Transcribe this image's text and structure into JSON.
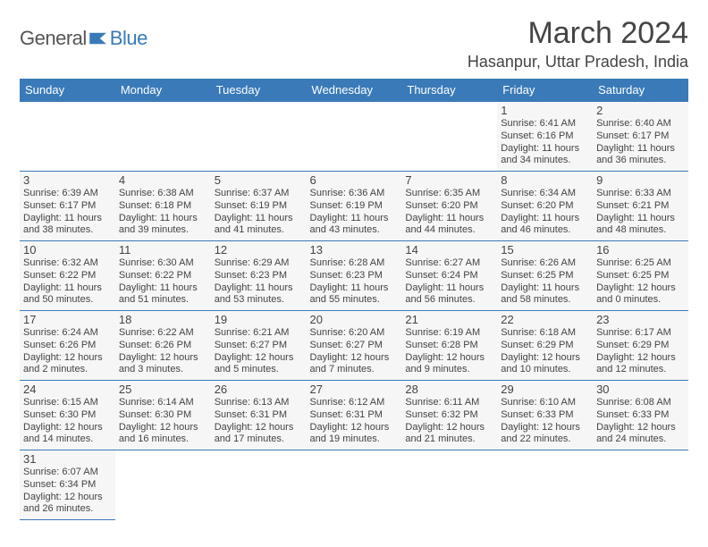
{
  "logo": {
    "general": "General",
    "blue": "Blue"
  },
  "title": "March 2024",
  "location": "Hasanpur, Uttar Pradesh, India",
  "colors": {
    "header_bg": "#3a7ab8",
    "header_fg": "#ffffff",
    "cell_bg": "#f6f6f6",
    "border": "#3a7ab8",
    "text": "#444444"
  },
  "weekdays": [
    "Sunday",
    "Monday",
    "Tuesday",
    "Wednesday",
    "Thursday",
    "Friday",
    "Saturday"
  ],
  "weeks": [
    [
      null,
      null,
      null,
      null,
      null,
      {
        "n": "1",
        "rise": "Sunrise: 6:41 AM",
        "set": "Sunset: 6:16 PM",
        "dl1": "Daylight: 11 hours",
        "dl2": "and 34 minutes."
      },
      {
        "n": "2",
        "rise": "Sunrise: 6:40 AM",
        "set": "Sunset: 6:17 PM",
        "dl1": "Daylight: 11 hours",
        "dl2": "and 36 minutes."
      }
    ],
    [
      {
        "n": "3",
        "rise": "Sunrise: 6:39 AM",
        "set": "Sunset: 6:17 PM",
        "dl1": "Daylight: 11 hours",
        "dl2": "and 38 minutes."
      },
      {
        "n": "4",
        "rise": "Sunrise: 6:38 AM",
        "set": "Sunset: 6:18 PM",
        "dl1": "Daylight: 11 hours",
        "dl2": "and 39 minutes."
      },
      {
        "n": "5",
        "rise": "Sunrise: 6:37 AM",
        "set": "Sunset: 6:19 PM",
        "dl1": "Daylight: 11 hours",
        "dl2": "and 41 minutes."
      },
      {
        "n": "6",
        "rise": "Sunrise: 6:36 AM",
        "set": "Sunset: 6:19 PM",
        "dl1": "Daylight: 11 hours",
        "dl2": "and 43 minutes."
      },
      {
        "n": "7",
        "rise": "Sunrise: 6:35 AM",
        "set": "Sunset: 6:20 PM",
        "dl1": "Daylight: 11 hours",
        "dl2": "and 44 minutes."
      },
      {
        "n": "8",
        "rise": "Sunrise: 6:34 AM",
        "set": "Sunset: 6:20 PM",
        "dl1": "Daylight: 11 hours",
        "dl2": "and 46 minutes."
      },
      {
        "n": "9",
        "rise": "Sunrise: 6:33 AM",
        "set": "Sunset: 6:21 PM",
        "dl1": "Daylight: 11 hours",
        "dl2": "and 48 minutes."
      }
    ],
    [
      {
        "n": "10",
        "rise": "Sunrise: 6:32 AM",
        "set": "Sunset: 6:22 PM",
        "dl1": "Daylight: 11 hours",
        "dl2": "and 50 minutes."
      },
      {
        "n": "11",
        "rise": "Sunrise: 6:30 AM",
        "set": "Sunset: 6:22 PM",
        "dl1": "Daylight: 11 hours",
        "dl2": "and 51 minutes."
      },
      {
        "n": "12",
        "rise": "Sunrise: 6:29 AM",
        "set": "Sunset: 6:23 PM",
        "dl1": "Daylight: 11 hours",
        "dl2": "and 53 minutes."
      },
      {
        "n": "13",
        "rise": "Sunrise: 6:28 AM",
        "set": "Sunset: 6:23 PM",
        "dl1": "Daylight: 11 hours",
        "dl2": "and 55 minutes."
      },
      {
        "n": "14",
        "rise": "Sunrise: 6:27 AM",
        "set": "Sunset: 6:24 PM",
        "dl1": "Daylight: 11 hours",
        "dl2": "and 56 minutes."
      },
      {
        "n": "15",
        "rise": "Sunrise: 6:26 AM",
        "set": "Sunset: 6:25 PM",
        "dl1": "Daylight: 11 hours",
        "dl2": "and 58 minutes."
      },
      {
        "n": "16",
        "rise": "Sunrise: 6:25 AM",
        "set": "Sunset: 6:25 PM",
        "dl1": "Daylight: 12 hours",
        "dl2": "and 0 minutes."
      }
    ],
    [
      {
        "n": "17",
        "rise": "Sunrise: 6:24 AM",
        "set": "Sunset: 6:26 PM",
        "dl1": "Daylight: 12 hours",
        "dl2": "and 2 minutes."
      },
      {
        "n": "18",
        "rise": "Sunrise: 6:22 AM",
        "set": "Sunset: 6:26 PM",
        "dl1": "Daylight: 12 hours",
        "dl2": "and 3 minutes."
      },
      {
        "n": "19",
        "rise": "Sunrise: 6:21 AM",
        "set": "Sunset: 6:27 PM",
        "dl1": "Daylight: 12 hours",
        "dl2": "and 5 minutes."
      },
      {
        "n": "20",
        "rise": "Sunrise: 6:20 AM",
        "set": "Sunset: 6:27 PM",
        "dl1": "Daylight: 12 hours",
        "dl2": "and 7 minutes."
      },
      {
        "n": "21",
        "rise": "Sunrise: 6:19 AM",
        "set": "Sunset: 6:28 PM",
        "dl1": "Daylight: 12 hours",
        "dl2": "and 9 minutes."
      },
      {
        "n": "22",
        "rise": "Sunrise: 6:18 AM",
        "set": "Sunset: 6:29 PM",
        "dl1": "Daylight: 12 hours",
        "dl2": "and 10 minutes."
      },
      {
        "n": "23",
        "rise": "Sunrise: 6:17 AM",
        "set": "Sunset: 6:29 PM",
        "dl1": "Daylight: 12 hours",
        "dl2": "and 12 minutes."
      }
    ],
    [
      {
        "n": "24",
        "rise": "Sunrise: 6:15 AM",
        "set": "Sunset: 6:30 PM",
        "dl1": "Daylight: 12 hours",
        "dl2": "and 14 minutes."
      },
      {
        "n": "25",
        "rise": "Sunrise: 6:14 AM",
        "set": "Sunset: 6:30 PM",
        "dl1": "Daylight: 12 hours",
        "dl2": "and 16 minutes."
      },
      {
        "n": "26",
        "rise": "Sunrise: 6:13 AM",
        "set": "Sunset: 6:31 PM",
        "dl1": "Daylight: 12 hours",
        "dl2": "and 17 minutes."
      },
      {
        "n": "27",
        "rise": "Sunrise: 6:12 AM",
        "set": "Sunset: 6:31 PM",
        "dl1": "Daylight: 12 hours",
        "dl2": "and 19 minutes."
      },
      {
        "n": "28",
        "rise": "Sunrise: 6:11 AM",
        "set": "Sunset: 6:32 PM",
        "dl1": "Daylight: 12 hours",
        "dl2": "and 21 minutes."
      },
      {
        "n": "29",
        "rise": "Sunrise: 6:10 AM",
        "set": "Sunset: 6:33 PM",
        "dl1": "Daylight: 12 hours",
        "dl2": "and 22 minutes."
      },
      {
        "n": "30",
        "rise": "Sunrise: 6:08 AM",
        "set": "Sunset: 6:33 PM",
        "dl1": "Daylight: 12 hours",
        "dl2": "and 24 minutes."
      }
    ],
    [
      {
        "n": "31",
        "rise": "Sunrise: 6:07 AM",
        "set": "Sunset: 6:34 PM",
        "dl1": "Daylight: 12 hours",
        "dl2": "and 26 minutes."
      },
      null,
      null,
      null,
      null,
      null,
      null
    ]
  ]
}
